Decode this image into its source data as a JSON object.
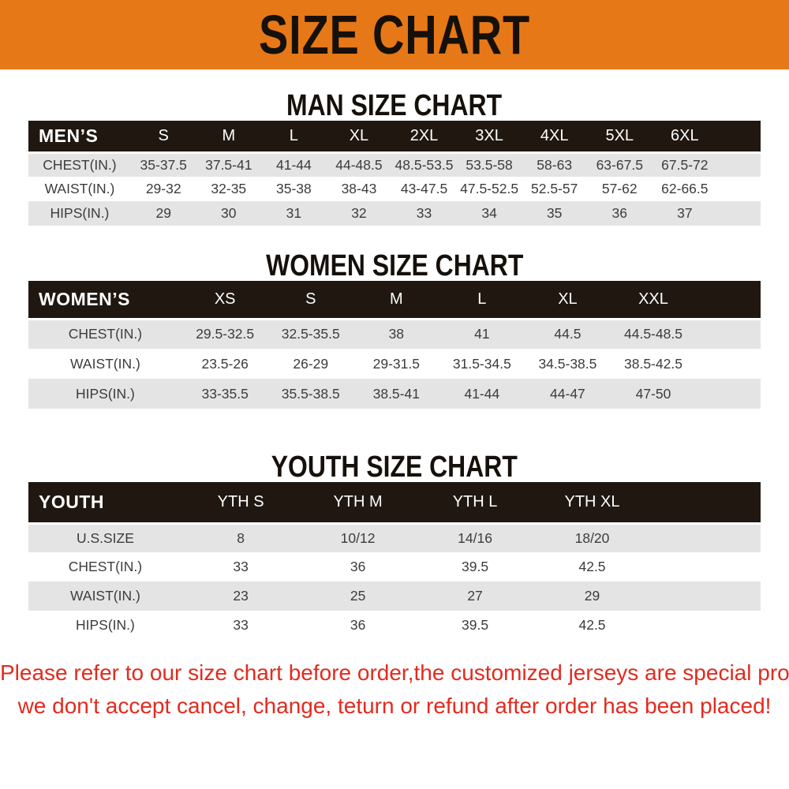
{
  "banner": {
    "title": "SIZE CHART",
    "bg_color": "#E67817",
    "text_color": "#16100a"
  },
  "headings": {
    "man": "MAN SIZE CHART",
    "women": "WOMEN SIZE CHART",
    "youth": "YOUTH SIZE CHART"
  },
  "tables": {
    "men": {
      "header": [
        "MEN’S",
        "S",
        "M",
        "L",
        "XL",
        "2XL",
        "3XL",
        "4XL",
        "5XL",
        "6XL"
      ],
      "rows": [
        [
          "CHEST(IN.)",
          "35-37.5",
          "37.5-41",
          "41-44",
          "44-48.5",
          "48.5-53.5",
          "53.5-58",
          "58-63",
          "63-67.5",
          "67.5-72"
        ],
        [
          "WAIST(IN.)",
          "29-32",
          "32-35",
          "35-38",
          "38-43",
          "43-47.5",
          "47.5-52.5",
          "52.5-57",
          "57-62",
          "62-66.5"
        ],
        [
          "HIPS(IN.)",
          "29",
          "30",
          "31",
          "32",
          "33",
          "34",
          "35",
          "36",
          "37"
        ]
      ]
    },
    "women": {
      "header": [
        "WOMEN’S",
        "XS",
        "S",
        "M",
        "L",
        "XL",
        "XXL"
      ],
      "rows": [
        [
          "CHEST(IN.)",
          "29.5-32.5",
          "32.5-35.5",
          "38",
          "41",
          "44.5",
          "44.5-48.5"
        ],
        [
          "WAIST(IN.)",
          "23.5-26",
          "26-29",
          "29-31.5",
          "31.5-34.5",
          "34.5-38.5",
          "38.5-42.5"
        ],
        [
          "HIPS(IN.)",
          "33-35.5",
          "35.5-38.5",
          "38.5-41",
          "41-44",
          "44-47",
          "47-50"
        ]
      ]
    },
    "youth": {
      "header": [
        "YOUTH",
        "YTH S",
        "YTH M",
        "YTH L",
        "YTH XL"
      ],
      "rows": [
        [
          "U.S.SIZE",
          "8",
          "10/12",
          "14/16",
          "18/20"
        ],
        [
          "CHEST(IN.)",
          "33",
          "36",
          "39.5",
          "42.5"
        ],
        [
          "WAIST(IN.)",
          "23",
          "25",
          "27",
          "29"
        ],
        [
          "HIPS(IN.)",
          "33",
          "36",
          "39.5",
          "42.5"
        ]
      ]
    }
  },
  "note": {
    "line1": "Please refer to our size chart before order,the customized jerseys are special products,",
    "line2": "we don't accept cancel, change, teturn or refund after order has been placed!",
    "color": "#E32A1E"
  },
  "colors": {
    "table_header_bg": "#1F1710",
    "table_header_text": "#ffffff",
    "row_stripe": "#E4E4E4",
    "row_plain": "#ffffff",
    "data_text": "#3C3C3C"
  }
}
